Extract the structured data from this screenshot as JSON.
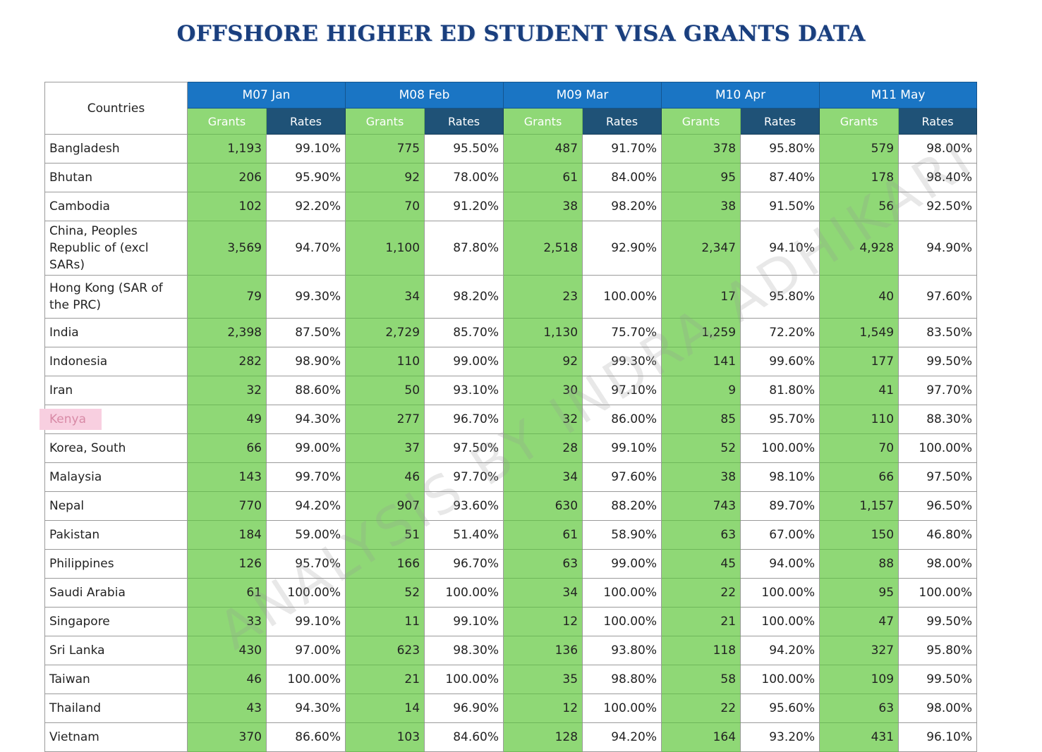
{
  "title": "OFFSHORE HIGHER ED STUDENT VISA GRANTS DATA",
  "header": {
    "countries_label": "Countries",
    "months": [
      "M07 Jan",
      "M08 Feb",
      "M09 Mar",
      "M10 Apr",
      "M11 May"
    ],
    "grants_label": "Grants",
    "rates_label": "Rates"
  },
  "rows": [
    {
      "country": "Bangladesh",
      "cells": [
        [
          "1,193",
          "99.10%"
        ],
        [
          "775",
          "95.50%"
        ],
        [
          "487",
          "91.70%"
        ],
        [
          "378",
          "95.80%"
        ],
        [
          "579",
          "98.00%"
        ]
      ]
    },
    {
      "country": "Bhutan",
      "cells": [
        [
          "206",
          "95.90%"
        ],
        [
          "92",
          "78.00%"
        ],
        [
          "61",
          "84.00%"
        ],
        [
          "95",
          "87.40%"
        ],
        [
          "178",
          "98.40%"
        ]
      ]
    },
    {
      "country": "Cambodia",
      "cells": [
        [
          "102",
          "92.20%"
        ],
        [
          "70",
          "91.20%"
        ],
        [
          "38",
          "98.20%"
        ],
        [
          "38",
          "91.50%"
        ],
        [
          "56",
          "92.50%"
        ]
      ]
    },
    {
      "country": "China, Peoples Republic of (excl SARs)",
      "cells": [
        [
          "3,569",
          "94.70%"
        ],
        [
          "1,100",
          "87.80%"
        ],
        [
          "2,518",
          "92.90%"
        ],
        [
          "2,347",
          "94.10%"
        ],
        [
          "4,928",
          "94.90%"
        ]
      ]
    },
    {
      "country": "Hong Kong (SAR of the PRC)",
      "cells": [
        [
          "79",
          "99.30%"
        ],
        [
          "34",
          "98.20%"
        ],
        [
          "23",
          "100.00%"
        ],
        [
          "17",
          "95.80%"
        ],
        [
          "40",
          "97.60%"
        ]
      ]
    },
    {
      "country": "India",
      "cells": [
        [
          "2,398",
          "87.50%"
        ],
        [
          "2,729",
          "85.70%"
        ],
        [
          "1,130",
          "75.70%"
        ],
        [
          "1,259",
          "72.20%"
        ],
        [
          "1,549",
          "83.50%"
        ]
      ]
    },
    {
      "country": "Indonesia",
      "cells": [
        [
          "282",
          "98.90%"
        ],
        [
          "110",
          "99.00%"
        ],
        [
          "92",
          "99.30%"
        ],
        [
          "141",
          "99.60%"
        ],
        [
          "177",
          "99.50%"
        ]
      ]
    },
    {
      "country": "Iran",
      "cells": [
        [
          "32",
          "88.60%"
        ],
        [
          "50",
          "93.10%"
        ],
        [
          "30",
          "97.10%"
        ],
        [
          "9",
          "81.80%"
        ],
        [
          "41",
          "97.70%"
        ]
      ]
    },
    {
      "country": "Kenya",
      "highlight": true,
      "cells": [
        [
          "49",
          "94.30%"
        ],
        [
          "277",
          "96.70%"
        ],
        [
          "32",
          "86.00%"
        ],
        [
          "85",
          "95.70%"
        ],
        [
          "110",
          "88.30%"
        ]
      ]
    },
    {
      "country": "Korea, South",
      "cells": [
        [
          "66",
          "99.00%"
        ],
        [
          "37",
          "97.50%"
        ],
        [
          "28",
          "99.10%"
        ],
        [
          "52",
          "100.00%"
        ],
        [
          "70",
          "100.00%"
        ]
      ]
    },
    {
      "country": "Malaysia",
      "cells": [
        [
          "143",
          "99.70%"
        ],
        [
          "46",
          "97.70%"
        ],
        [
          "34",
          "97.60%"
        ],
        [
          "38",
          "98.10%"
        ],
        [
          "66",
          "97.50%"
        ]
      ]
    },
    {
      "country": "Nepal",
      "cells": [
        [
          "770",
          "94.20%"
        ],
        [
          "907",
          "93.60%"
        ],
        [
          "630",
          "88.20%"
        ],
        [
          "743",
          "89.70%"
        ],
        [
          "1,157",
          "96.50%"
        ]
      ]
    },
    {
      "country": "Pakistan",
      "cells": [
        [
          "184",
          "59.00%"
        ],
        [
          "51",
          "51.40%"
        ],
        [
          "61",
          "58.90%"
        ],
        [
          "63",
          "67.00%"
        ],
        [
          "150",
          "46.80%"
        ]
      ]
    },
    {
      "country": "Philippines",
      "cells": [
        [
          "126",
          "95.70%"
        ],
        [
          "166",
          "96.70%"
        ],
        [
          "63",
          "99.00%"
        ],
        [
          "45",
          "94.00%"
        ],
        [
          "88",
          "98.00%"
        ]
      ]
    },
    {
      "country": "Saudi Arabia",
      "cells": [
        [
          "61",
          "100.00%"
        ],
        [
          "52",
          "100.00%"
        ],
        [
          "34",
          "100.00%"
        ],
        [
          "22",
          "100.00%"
        ],
        [
          "95",
          "100.00%"
        ]
      ]
    },
    {
      "country": "Singapore",
      "cells": [
        [
          "33",
          "99.10%"
        ],
        [
          "11",
          "99.10%"
        ],
        [
          "12",
          "100.00%"
        ],
        [
          "21",
          "100.00%"
        ],
        [
          "47",
          "99.50%"
        ]
      ]
    },
    {
      "country": "Sri Lanka",
      "cells": [
        [
          "430",
          "97.00%"
        ],
        [
          "623",
          "98.30%"
        ],
        [
          "136",
          "93.80%"
        ],
        [
          "118",
          "94.20%"
        ],
        [
          "327",
          "95.80%"
        ]
      ]
    },
    {
      "country": "Taiwan",
      "cells": [
        [
          "46",
          "100.00%"
        ],
        [
          "21",
          "100.00%"
        ],
        [
          "35",
          "98.80%"
        ],
        [
          "58",
          "100.00%"
        ],
        [
          "109",
          "99.50%"
        ]
      ]
    },
    {
      "country": "Thailand",
      "cells": [
        [
          "43",
          "94.30%"
        ],
        [
          "14",
          "96.90%"
        ],
        [
          "12",
          "100.00%"
        ],
        [
          "22",
          "95.60%"
        ],
        [
          "63",
          "98.00%"
        ]
      ]
    },
    {
      "country": "Vietnam",
      "cells": [
        [
          "370",
          "86.60%"
        ],
        [
          "103",
          "84.60%"
        ],
        [
          "128",
          "94.20%"
        ],
        [
          "164",
          "93.20%"
        ],
        [
          "431",
          "96.10%"
        ]
      ]
    }
  ],
  "watermark": "ANALYSIS BY INDRA ADHIKARI"
}
